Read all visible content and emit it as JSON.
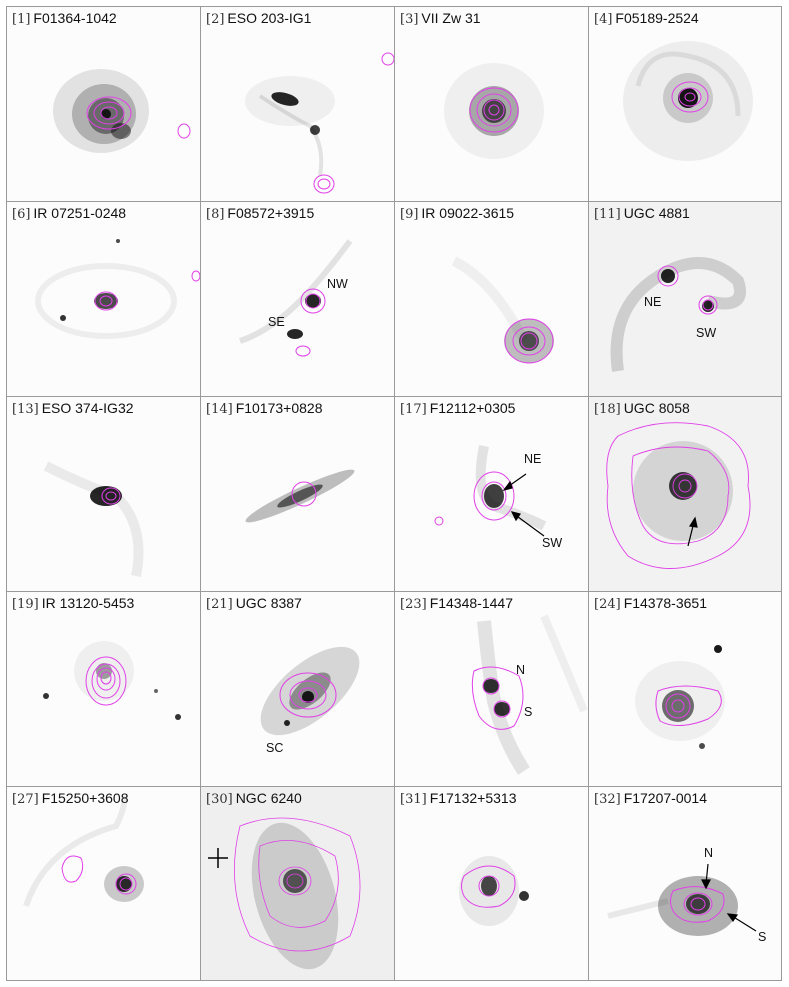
{
  "panels": [
    {
      "idx": "[1]",
      "name": "F01364-1042",
      "labels": []
    },
    {
      "idx": "[2]",
      "name": "ESO 203-IG1",
      "labels": []
    },
    {
      "idx": "[3]",
      "name": "VII Zw 31",
      "labels": []
    },
    {
      "idx": "[4]",
      "name": "F05189-2524",
      "labels": []
    },
    {
      "idx": "[6]",
      "name": "IR 07251-0248",
      "labels": []
    },
    {
      "idx": "[8]",
      "name": "F08572+3915",
      "labels": [
        "NW",
        "SE"
      ]
    },
    {
      "idx": "[9]",
      "name": "IR 09022-3615",
      "labels": []
    },
    {
      "idx": "[11]",
      "name": "UGC 4881",
      "labels": [
        "NE",
        "SW"
      ]
    },
    {
      "idx": "[13]",
      "name": "ESO 374-IG32",
      "labels": []
    },
    {
      "idx": "[14]",
      "name": "F10173+0828",
      "labels": []
    },
    {
      "idx": "[17]",
      "name": "F12112+0305",
      "labels": [
        "NE",
        "SW"
      ]
    },
    {
      "idx": "[18]",
      "name": "UGC 8058",
      "labels": []
    },
    {
      "idx": "[19]",
      "name": "IR 13120-5453",
      "labels": []
    },
    {
      "idx": "[21]",
      "name": "UGC 8387",
      "labels": [
        "SC"
      ]
    },
    {
      "idx": "[23]",
      "name": "F14348-1447",
      "labels": [
        "N",
        "S"
      ]
    },
    {
      "idx": "[24]",
      "name": "F14378-3651",
      "labels": []
    },
    {
      "idx": "[27]",
      "name": "F15250+3608",
      "labels": []
    },
    {
      "idx": "[30]",
      "name": "NGC 6240",
      "labels": []
    },
    {
      "idx": "[31]",
      "name": "F17132+5313",
      "labels": []
    },
    {
      "idx": "[32]",
      "name": "F17207-0014",
      "labels": [
        "N",
        "S"
      ]
    }
  ],
  "colors": {
    "contour": "#e040e8",
    "galaxy": "#000000",
    "border": "#9a9a9a",
    "background": "#fcfcfc"
  }
}
